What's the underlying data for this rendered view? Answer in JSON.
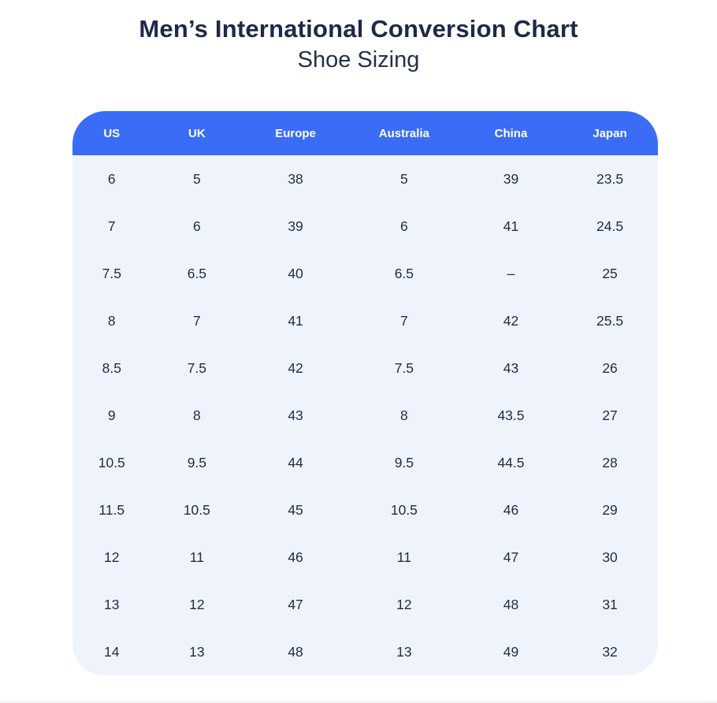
{
  "header": {
    "title": "Men’s International Conversion Chart",
    "subtitle": "Shoe Sizing"
  },
  "colors": {
    "header_bg": "#3a6cf6",
    "header_text": "#ffffff",
    "body_bg": "#eff4fc",
    "body_text": "#1f2b48",
    "title_text": "#1f2847",
    "subtitle_text": "#243049"
  },
  "table": {
    "columns": [
      "US",
      "UK",
      "Europe",
      "Australia",
      "China",
      "Japan"
    ],
    "rows": [
      [
        "6",
        "5",
        "38",
        "5",
        "39",
        "23.5"
      ],
      [
        "7",
        "6",
        "39",
        "6",
        "41",
        "24.5"
      ],
      [
        "7.5",
        "6.5",
        "40",
        "6.5",
        "–",
        "25"
      ],
      [
        "8",
        "7",
        "41",
        "7",
        "42",
        "25.5"
      ],
      [
        "8.5",
        "7.5",
        "42",
        "7.5",
        "43",
        "26"
      ],
      [
        "9",
        "8",
        "43",
        "8",
        "43.5",
        "27"
      ],
      [
        "10.5",
        "9.5",
        "44",
        "9.5",
        "44.5",
        "28"
      ],
      [
        "11.5",
        "10.5",
        "45",
        "10.5",
        "46",
        "29"
      ],
      [
        "12",
        "11",
        "46",
        "11",
        "47",
        "30"
      ],
      [
        "13",
        "12",
        "47",
        "12",
        "48",
        "31"
      ],
      [
        "14",
        "13",
        "48",
        "13",
        "49",
        "32"
      ]
    ]
  },
  "chart_data": {
    "type": "table",
    "title": "Men’s International Conversion Chart",
    "subtitle": "Shoe Sizing",
    "columns": [
      "US",
      "UK",
      "Europe",
      "Australia",
      "China",
      "Japan"
    ],
    "rows": [
      [
        "6",
        "5",
        "38",
        "5",
        "39",
        "23.5"
      ],
      [
        "7",
        "6",
        "39",
        "6",
        "41",
        "24.5"
      ],
      [
        "7.5",
        "6.5",
        "40",
        "6.5",
        "–",
        "25"
      ],
      [
        "8",
        "7",
        "41",
        "7",
        "42",
        "25.5"
      ],
      [
        "8.5",
        "7.5",
        "42",
        "7.5",
        "43",
        "26"
      ],
      [
        "9",
        "8",
        "43",
        "8",
        "43.5",
        "27"
      ],
      [
        "10.5",
        "9.5",
        "44",
        "9.5",
        "44.5",
        "28"
      ],
      [
        "11.5",
        "10.5",
        "45",
        "10.5",
        "46",
        "29"
      ],
      [
        "12",
        "11",
        "46",
        "11",
        "47",
        "30"
      ],
      [
        "13",
        "12",
        "47",
        "12",
        "48",
        "31"
      ],
      [
        "14",
        "13",
        "48",
        "13",
        "49",
        "32"
      ]
    ],
    "layout_hints": {
      "header_fill": "#3a6cf6",
      "body_fill": "#eff4fc",
      "rounded_corners": true,
      "gridlines": false,
      "cell_alignment": "center"
    }
  }
}
